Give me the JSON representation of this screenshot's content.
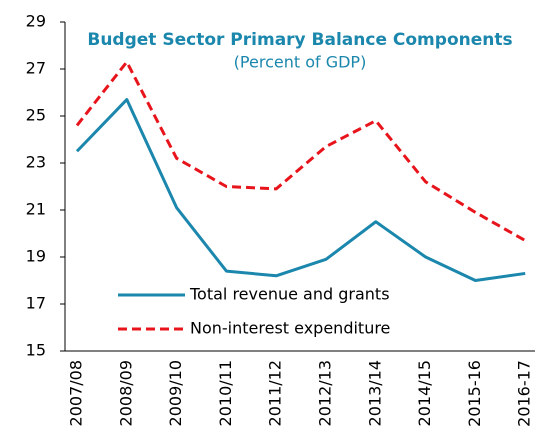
{
  "chart_data": {
    "type": "line",
    "title": "Budget Sector Primary Balance Components",
    "subtitle": "(Percent of GDP)",
    "categories": [
      "2007/08",
      "2008/09",
      "2009/10",
      "2010/11",
      "2011/12",
      "2012/13",
      "2013/14",
      "2014/15",
      "2015-16",
      "2016-17"
    ],
    "series": [
      {
        "name": "Total revenue and grants",
        "color": "#1b87ad",
        "dash": false,
        "values": [
          23.5,
          25.7,
          21.1,
          18.4,
          18.2,
          18.9,
          20.5,
          19.0,
          18.0,
          18.3
        ]
      },
      {
        "name": "Non-interest expenditure",
        "color": "#e8141c",
        "dash": true,
        "values": [
          24.6,
          27.3,
          23.2,
          22.0,
          21.9,
          23.7,
          24.8,
          22.2,
          20.9,
          19.7
        ]
      }
    ],
    "ylim": [
      15,
      29
    ],
    "yticks": [
      15,
      17,
      19,
      21,
      23,
      25,
      27,
      29
    ],
    "grid": false
  }
}
